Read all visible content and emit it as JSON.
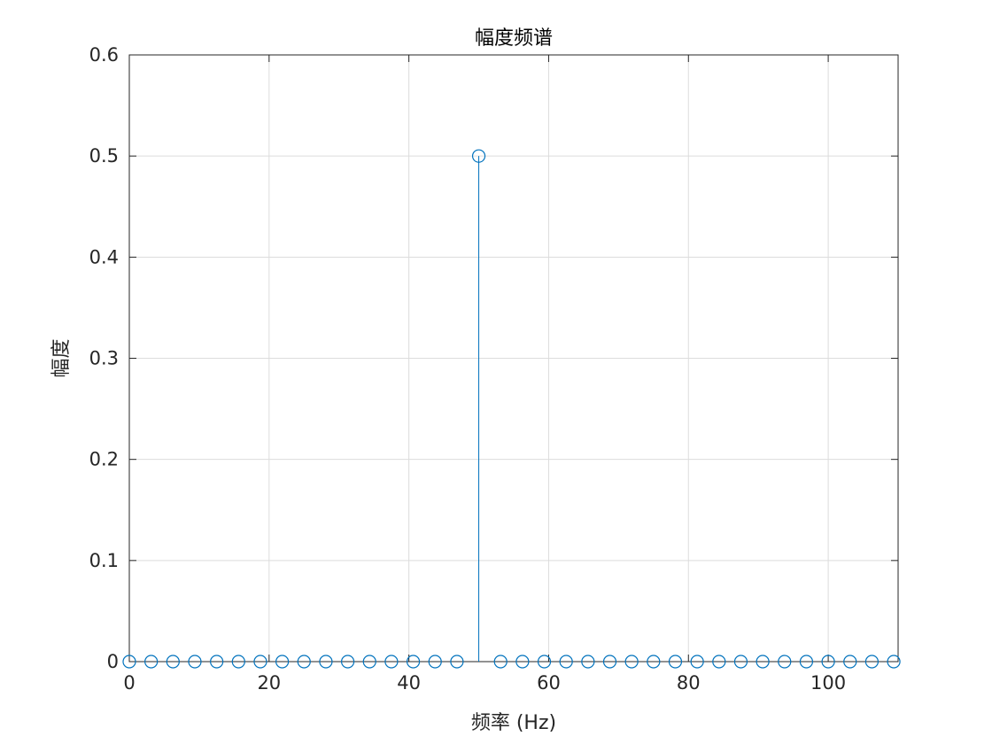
{
  "chart_data": {
    "type": "stem",
    "title": "幅度频谱",
    "xlabel": "频率 (Hz)",
    "ylabel": "幅度",
    "xlim": [
      0,
      110
    ],
    "ylim": [
      0,
      0.6
    ],
    "xticks": [
      0,
      20,
      40,
      60,
      80,
      100
    ],
    "yticks": [
      0,
      0.1,
      0.2,
      0.3,
      0.4,
      0.5,
      0.6
    ],
    "xtick_labels": [
      "0",
      "20",
      "40",
      "60",
      "80",
      "100"
    ],
    "ytick_labels": [
      "0",
      "0.1",
      "0.2",
      "0.3",
      "0.4",
      "0.5",
      "0.6"
    ],
    "grid": true,
    "box": true,
    "marker": "circle-open",
    "color": "#0072BD",
    "series": [
      {
        "x": [
          0,
          3.125,
          6.25,
          9.375,
          12.5,
          15.625,
          18.75,
          21.875,
          25,
          28.125,
          31.25,
          34.375,
          37.5,
          40.625,
          43.75,
          46.875,
          50,
          53.125,
          56.25,
          59.375,
          62.5,
          65.625,
          68.75,
          71.875,
          75,
          78.125,
          81.25,
          84.375,
          87.5,
          90.625,
          93.75,
          96.875,
          100,
          103.125,
          106.25,
          109.375
        ],
        "y": [
          0,
          0,
          0,
          0,
          0,
          0,
          0,
          0,
          0,
          0,
          0,
          0,
          0,
          0,
          0,
          0,
          0.5,
          0,
          0,
          0,
          0,
          0,
          0,
          0,
          0,
          0,
          0,
          0,
          0,
          0,
          0,
          0,
          0,
          0,
          0,
          0
        ]
      }
    ]
  }
}
